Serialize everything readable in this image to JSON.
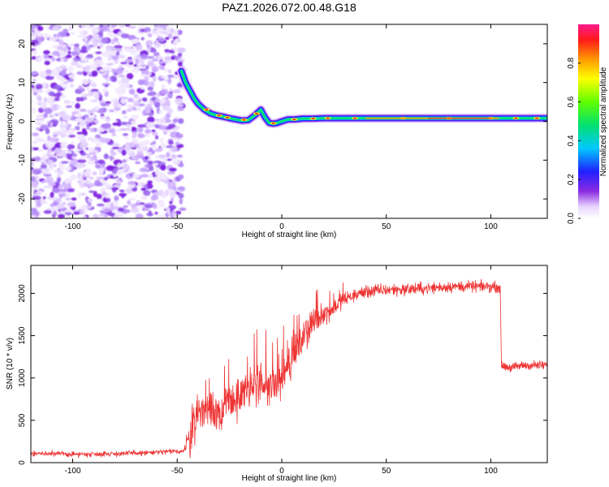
{
  "title": "PAZ1.2026.072.00.48.G18",
  "chart_data": [
    {
      "type": "heatmap",
      "name": "spectrogram",
      "xlabel": "Height of straight line (km)",
      "ylabel": "Frequency (Hz)",
      "xlim": [
        -120,
        127
      ],
      "ylim": [
        -25,
        25
      ],
      "x_ticks": [
        -100,
        -50,
        0,
        50,
        100
      ],
      "y_ticks": [
        -20,
        -10,
        0,
        10,
        20
      ],
      "x_tick_labels": [
        "-100",
        "-50",
        "0",
        "50",
        "100"
      ],
      "y_tick_labels": [
        "-20",
        "-10",
        "0",
        "10",
        "20"
      ],
      "noise_region": [
        -120,
        -47
      ],
      "ridge_x": [
        -48,
        -46,
        -44,
        -42,
        -40,
        -37,
        -34,
        -31,
        -28,
        -25,
        -22,
        -19,
        -16,
        -13,
        -10,
        -8,
        -6,
        -4,
        -2,
        0,
        3,
        6,
        10,
        15,
        20,
        30,
        40,
        50,
        60,
        70,
        80,
        90,
        100,
        105,
        110,
        115,
        120,
        127
      ],
      "ridge_f": [
        13,
        10,
        8,
        6,
        4.5,
        3,
        2,
        1.5,
        1.2,
        0.8,
        0.5,
        0.2,
        0.3,
        1.5,
        3,
        1,
        -0.4,
        -0.6,
        -0.4,
        0,
        0.5,
        0.5,
        0.7,
        0.7,
        0.8,
        0.8,
        0.8,
        0.8,
        0.8,
        0.8,
        0.8,
        0.8,
        0.8,
        0.8,
        0.8,
        0.8,
        0.8,
        0.8
      ]
    },
    {
      "type": "line",
      "name": "snr",
      "xlabel": "Height of straight line (km)",
      "ylabel": "SNR (10 * v/v)",
      "xlim": [
        -120,
        127
      ],
      "ylim": [
        0,
        2330
      ],
      "x_ticks": [
        -100,
        -50,
        0,
        50,
        100
      ],
      "y_ticks": [
        0,
        500,
        1000,
        1500,
        2000
      ],
      "x_tick_labels": [
        "-100",
        "-50",
        "0",
        "50",
        "100"
      ],
      "y_tick_labels": [
        "0",
        "500",
        "1000",
        "1500",
        "2000"
      ],
      "color": "#ee3333",
      "envelope_x": [
        -120,
        -100,
        -80,
        -60,
        -47,
        -44,
        -42,
        -40,
        -35,
        -30,
        -25,
        -20,
        -15,
        -10,
        -5,
        0,
        5,
        10,
        15,
        20,
        25,
        30,
        35,
        40,
        50,
        60,
        70,
        80,
        90,
        100,
        104.5,
        105,
        110,
        115,
        120,
        127
      ],
      "envelope_y": [
        110,
        100,
        105,
        120,
        140,
        280,
        450,
        620,
        650,
        600,
        680,
        780,
        850,
        900,
        880,
        1000,
        1250,
        1450,
        1650,
        1750,
        1850,
        1930,
        1980,
        2020,
        2040,
        2050,
        2060,
        2080,
        2080,
        2080,
        2070,
        1150,
        1120,
        1150,
        1150,
        1150
      ],
      "noise_amp_x": [
        -120,
        -47,
        -44,
        -20,
        0,
        10,
        30,
        104.5,
        105,
        127
      ],
      "noise_amp_y": [
        45,
        50,
        320,
        380,
        330,
        260,
        120,
        90,
        80,
        80
      ]
    }
  ],
  "colorbar": {
    "label": "Normalized spectral amplitude",
    "ticks": [
      0.0,
      0.2,
      0.4,
      0.6,
      0.8
    ],
    "tick_labels": [
      "0.0",
      "0.2",
      "0.4",
      "0.6",
      "0.8"
    ],
    "range": [
      0,
      1
    ]
  }
}
